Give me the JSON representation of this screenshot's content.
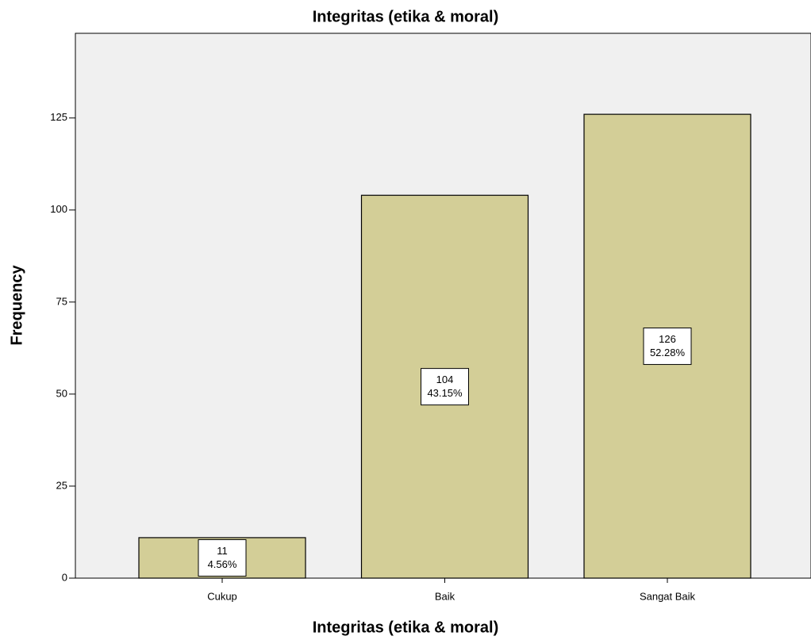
{
  "chart_data": {
    "type": "bar",
    "title": "Integritas (etika & moral)",
    "x_label": "Integritas (etika & moral)",
    "y_label": "Frequency",
    "categories": [
      "Cukup",
      "Baik",
      "Sangat Baik"
    ],
    "values": [
      11,
      104,
      126
    ],
    "percents": [
      4.56,
      43.15,
      52.28
    ],
    "percent_labels": [
      "4.56%",
      "43.15%",
      "52.28%"
    ],
    "color": "#d3ce97",
    "ylim": [
      0,
      148
    ],
    "yticks": [
      0,
      25,
      50,
      75,
      100,
      125
    ],
    "grid": false
  }
}
